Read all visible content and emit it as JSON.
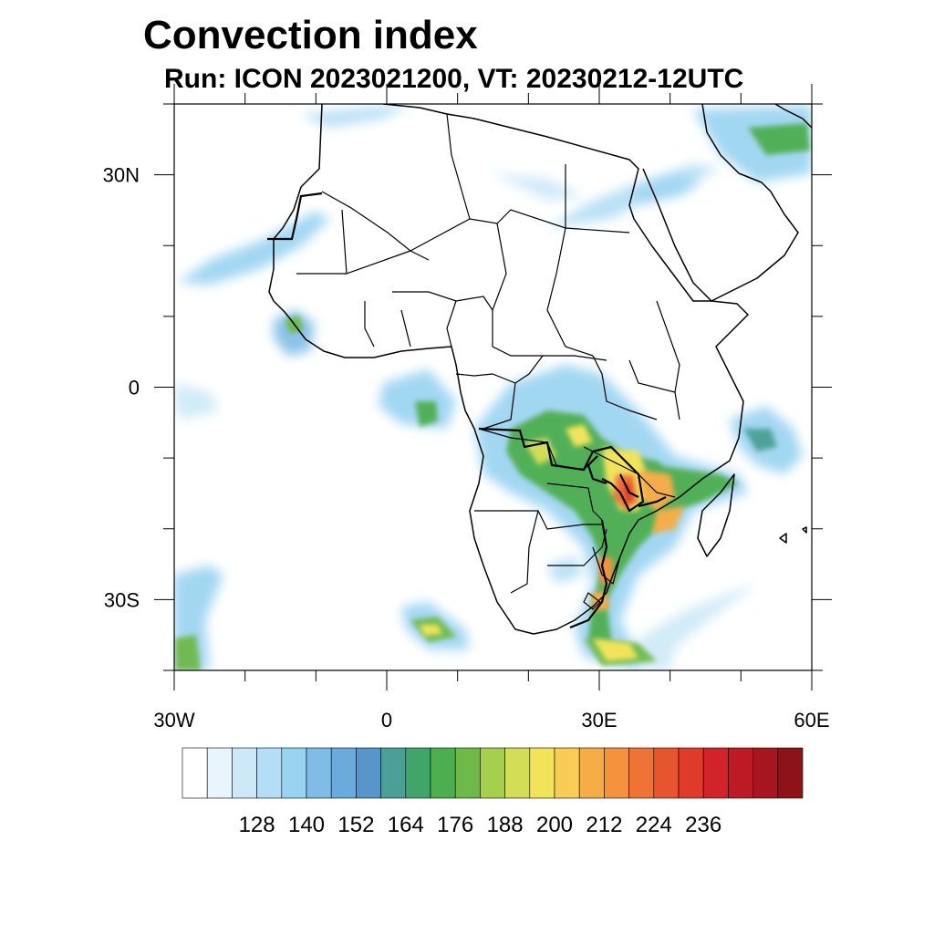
{
  "title": "Convection index",
  "subtitle": "Run: ICON 2023021200,  VT: 20230212-12UTC",
  "map": {
    "region": "Africa",
    "lon_range": [
      -30,
      60
    ],
    "lat_range": [
      -40,
      40
    ],
    "x_ticks": [
      {
        "lon": -30,
        "label": "30W"
      },
      {
        "lon": 0,
        "label": "0"
      },
      {
        "lon": 30,
        "label": "30E"
      },
      {
        "lon": 60,
        "label": "60E"
      }
    ],
    "y_ticks": [
      {
        "lat": 30,
        "label": "30N"
      },
      {
        "lat": 0,
        "label": "0"
      },
      {
        "lat": -30,
        "label": "30S"
      }
    ]
  },
  "colorbar": {
    "colors": [
      "#ffffff",
      "#e8f5fc",
      "#cde9f8",
      "#b3def5",
      "#98d3f1",
      "#7fbde6",
      "#6aaadc",
      "#5795cb",
      "#4aa096",
      "#3fa56b",
      "#4dae4f",
      "#6dba48",
      "#a6cf4e",
      "#d3dd55",
      "#f2e45a",
      "#f8cd53",
      "#f6ad46",
      "#f4923d",
      "#ef7335",
      "#e8542d",
      "#e03a2a",
      "#d22428",
      "#bd1a25",
      "#a71521",
      "#8e1319"
    ],
    "labels": [
      "128",
      "140",
      "152",
      "164",
      "176",
      "188",
      "200",
      "212",
      "224",
      "236"
    ]
  }
}
